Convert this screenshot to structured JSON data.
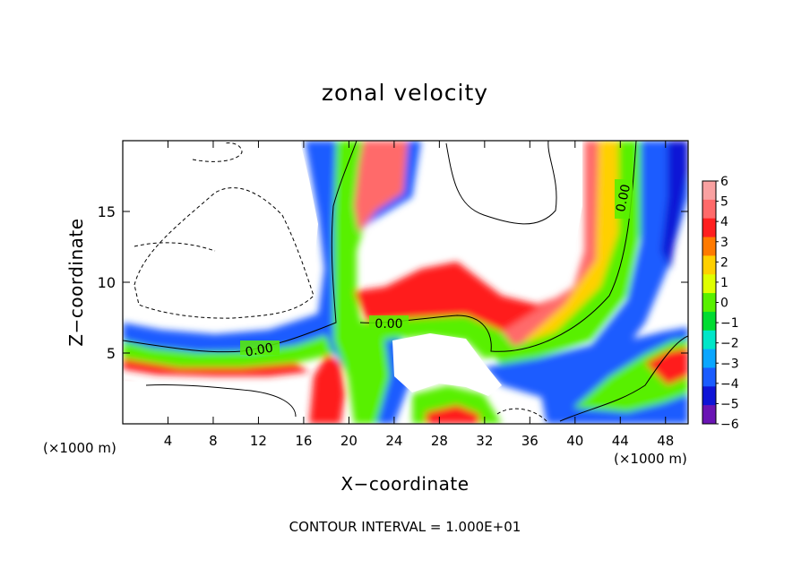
{
  "chart_data": {
    "type": "heatmap",
    "title": "zonal velocity",
    "xlabel": "X−coordinate",
    "ylabel": "Z−coordinate",
    "x_unit_left": "(×1000 m)",
    "x_unit_right": "(×1000 m)",
    "footer": "CONTOUR INTERVAL = 1.000E+01",
    "xlim": [
      0,
      50
    ],
    "ylim": [
      0,
      20
    ],
    "xticks": [
      4,
      8,
      12,
      16,
      20,
      24,
      28,
      32,
      36,
      40,
      44,
      48
    ],
    "yticks": [
      5,
      10,
      15
    ],
    "colorbar": {
      "ticks": [
        6,
        5,
        4,
        3,
        2,
        1,
        0,
        -1,
        -2,
        -3,
        -4,
        -5,
        -6
      ],
      "labels": [
        "6",
        "5",
        "4",
        "3",
        "2",
        "1",
        "0",
        "−1",
        "−2",
        "−3",
        "−4",
        "−5",
        "−6"
      ],
      "colors": [
        "#f9a1a1",
        "#ff6a6a",
        "#ff1f1f",
        "#ff7a00",
        "#ffd000",
        "#dfff00",
        "#58f000",
        "#00dc32",
        "#00e6c8",
        "#0aa6ff",
        "#1a5cff",
        "#0f14d6",
        "#6a14b4"
      ]
    },
    "contour_labels": [
      "0.00",
      "0.00",
      "0.00"
    ],
    "grid": false,
    "legend": "colorbar-right"
  }
}
